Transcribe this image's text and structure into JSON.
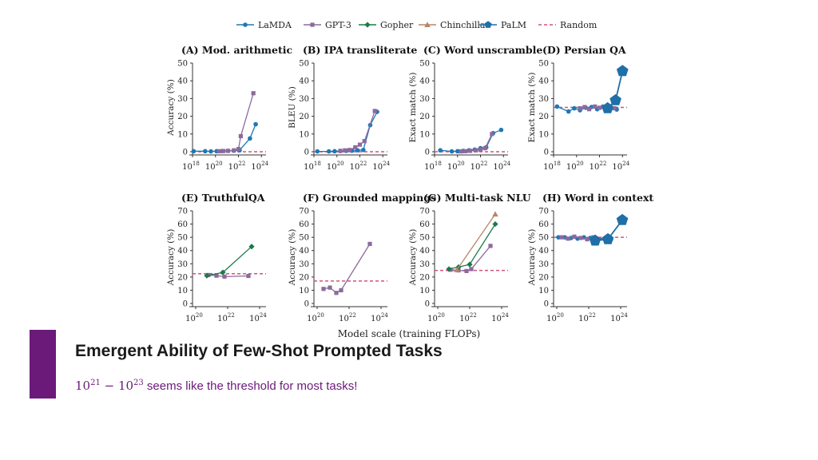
{
  "legend": [
    {
      "name": "LaMDA",
      "color": "#1f78b4",
      "marker": "circle"
    },
    {
      "name": "GPT-3",
      "color": "#8c6a9e",
      "marker": "square"
    },
    {
      "name": "Gopher",
      "color": "#1b7a4a",
      "marker": "diamond"
    },
    {
      "name": "Chinchilla",
      "color": "#b5876a",
      "marker": "triangle"
    },
    {
      "name": "PaLM",
      "color": "#1f6fa8",
      "marker": "pentagon"
    },
    {
      "name": "Random",
      "color": "#d2527f",
      "marker": "dashed"
    }
  ],
  "x_axis_title": "Model scale (training FLOPs)",
  "slide": {
    "title": "Emergent Ability of Few-Shot Prompted Tasks",
    "subtitle_base1": "10",
    "subtitle_exp1": "21",
    "subtitle_minus": " − ",
    "subtitle_base2": "10",
    "subtitle_exp2": "23",
    "subtitle_text": " seems like the threshold for most tasks!"
  },
  "chart_data": [
    {
      "type": "line",
      "title": "(A) Mod. arithmetic",
      "ylabel": "Accuracy (%)",
      "xlim": [
        18,
        24.4
      ],
      "xticks": [
        18,
        20,
        22,
        24
      ],
      "ylim": [
        0,
        50
      ],
      "yticks": [
        0,
        10,
        20,
        30,
        40,
        50
      ],
      "random": 0,
      "series": [
        {
          "name": "LaMDA",
          "x": [
            18.1,
            19.1,
            19.6,
            20.1,
            20.6,
            21.1,
            21.6,
            22.1,
            23.0,
            23.5
          ],
          "y": [
            0.3,
            0.3,
            0.2,
            0.3,
            0.4,
            0.5,
            0.6,
            0.8,
            7.5,
            15.5
          ]
        },
        {
          "name": "GPT-3",
          "x": [
            20.3,
            20.7,
            21.1,
            21.6,
            22.0,
            22.2,
            23.3
          ],
          "y": [
            0.3,
            0.4,
            0.5,
            0.8,
            1.5,
            8.8,
            33
          ]
        }
      ]
    },
    {
      "type": "line",
      "title": "(B) IPA transliterate",
      "ylabel": "BLEU (%)",
      "xlim": [
        18,
        24.4
      ],
      "xticks": [
        18,
        20,
        22,
        24
      ],
      "ylim": [
        0,
        50
      ],
      "yticks": [
        0,
        10,
        20,
        30,
        40,
        50
      ],
      "random": 0,
      "series": [
        {
          "name": "LaMDA",
          "x": [
            18.3,
            19.3,
            19.8,
            20.3,
            20.8,
            21.3,
            21.8,
            22.3,
            22.9,
            23.5
          ],
          "y": [
            0.2,
            0.2,
            0.3,
            0.4,
            0.5,
            0.6,
            0.8,
            1.0,
            15,
            22.5
          ]
        },
        {
          "name": "GPT-3",
          "x": [
            20.3,
            20.7,
            21.1,
            21.6,
            22.0,
            22.4,
            23.3
          ],
          "y": [
            0.5,
            0.8,
            1.0,
            2.5,
            4.0,
            6.0,
            23
          ]
        }
      ]
    },
    {
      "type": "line",
      "title": "(C) Word unscramble",
      "ylabel": "Exact match (%)",
      "xlim": [
        18,
        24.4
      ],
      "xticks": [
        18,
        20,
        22,
        24
      ],
      "ylim": [
        0,
        50
      ],
      "yticks": [
        0,
        10,
        20,
        30,
        40,
        50
      ],
      "random": 0,
      "series": [
        {
          "name": "LaMDA",
          "x": [
            18.5,
            19.5,
            20.0,
            20.5,
            21.0,
            21.5,
            22.0,
            22.5,
            23.1,
            23.8
          ],
          "y": [
            0.8,
            0.2,
            0.3,
            0.5,
            0.8,
            1.2,
            2.0,
            2.5,
            10.5,
            12.3
          ]
        },
        {
          "name": "GPT-3",
          "x": [
            20.3,
            20.7,
            21.1,
            21.6,
            22.0,
            22.4,
            23.0
          ],
          "y": [
            0.2,
            0.3,
            0.5,
            0.8,
            1.2,
            2.0,
            10
          ]
        }
      ]
    },
    {
      "type": "line",
      "title": "(D) Persian QA",
      "ylabel": "Exact match (%)",
      "xlim": [
        18,
        24.4
      ],
      "xticks": [
        18,
        20,
        22,
        24
      ],
      "ylim": [
        0,
        50
      ],
      "yticks": [
        0,
        10,
        20,
        30,
        40,
        50
      ],
      "random": 25,
      "series": [
        {
          "name": "LaMDA",
          "x": [
            18.3,
            19.3,
            19.8,
            20.3,
            20.8,
            21.3,
            21.8,
            22.3,
            22.8,
            23.5
          ],
          "y": [
            25.5,
            22.7,
            24.5,
            23.4,
            24.8,
            25.2,
            24.0,
            25.5,
            24.2,
            23.8
          ]
        },
        {
          "name": "GPT-3",
          "x": [
            20.3,
            20.7,
            21.1,
            21.6,
            22.0,
            22.4,
            23.3
          ],
          "y": [
            24.5,
            25.2,
            24.0,
            25.5,
            24.8,
            25.0,
            24.5
          ]
        },
        {
          "name": "PaLM",
          "x": [
            22.7,
            23.4,
            24.0
          ],
          "y": [
            24.5,
            29.0,
            45.5
          ]
        }
      ]
    },
    {
      "type": "line",
      "title": "(E) TruthfulQA",
      "ylabel": "Accuracy (%)",
      "xlim": [
        19.8,
        24.4
      ],
      "xticks": [
        20,
        22,
        24
      ],
      "ylim": [
        0,
        70
      ],
      "yticks": [
        0,
        10,
        20,
        30,
        40,
        50,
        60,
        70
      ],
      "random": 22.5,
      "series": [
        {
          "name": "GPT-3",
          "x": [
            20.8,
            21.3,
            21.8,
            23.3
          ],
          "y": [
            21.5,
            21.0,
            20.3,
            20.8
          ]
        },
        {
          "name": "Gopher",
          "x": [
            20.7,
            21.7,
            23.5
          ],
          "y": [
            21.0,
            23.5,
            43
          ]
        }
      ]
    },
    {
      "type": "line",
      "title": "(F) Grounded mappings",
      "ylabel": "Accuracy (%)",
      "xlim": [
        19.8,
        24.4
      ],
      "xticks": [
        20,
        22,
        24
      ],
      "ylim": [
        0,
        70
      ],
      "yticks": [
        0,
        10,
        20,
        30,
        40,
        50,
        60,
        70
      ],
      "random": 17,
      "series": [
        {
          "name": "GPT-3",
          "x": [
            20.4,
            20.8,
            21.2,
            21.5,
            23.3
          ],
          "y": [
            11,
            12,
            8,
            10,
            45
          ]
        }
      ]
    },
    {
      "type": "line",
      "title": "(G) Multi-task NLU",
      "ylabel": "Accuracy (%)",
      "xlim": [
        19.8,
        24.4
      ],
      "xticks": [
        20,
        22,
        24
      ],
      "ylim": [
        0,
        70
      ],
      "yticks": [
        0,
        10,
        20,
        30,
        40,
        50,
        60,
        70
      ],
      "random": 25,
      "series": [
        {
          "name": "GPT-3",
          "x": [
            20.8,
            21.3,
            21.8,
            22.1,
            23.3
          ],
          "y": [
            25.5,
            25.0,
            24.5,
            26.0,
            43.5
          ]
        },
        {
          "name": "Gopher",
          "x": [
            20.7,
            21.3,
            22.0,
            23.6
          ],
          "y": [
            26,
            27.5,
            29.5,
            60
          ]
        },
        {
          "name": "Chinchilla",
          "x": [
            21.2,
            23.6
          ],
          "y": [
            25.5,
            67.5
          ]
        }
      ]
    },
    {
      "type": "line",
      "title": "(H) Word in context",
      "ylabel": "Accuracy (%)",
      "xlim": [
        19.8,
        24.4
      ],
      "xticks": [
        20,
        22,
        24
      ],
      "ylim": [
        0,
        70
      ],
      "yticks": [
        0,
        10,
        20,
        30,
        40,
        50,
        60,
        70
      ],
      "random": 50,
      "series": [
        {
          "name": "LaMDA",
          "x": [
            20.1,
            20.5,
            20.9,
            21.3,
            21.7,
            22.1,
            22.5,
            23.0,
            23.4
          ],
          "y": [
            50,
            50,
            49.5,
            49,
            50,
            49.5,
            49,
            48.5,
            48.5
          ]
        },
        {
          "name": "GPT-3",
          "x": [
            20.3,
            20.7,
            21.1,
            21.5,
            21.9,
            22.3,
            23.1
          ],
          "y": [
            50,
            49,
            50.5,
            49.5,
            48.5,
            50,
            49
          ]
        },
        {
          "name": "PaLM",
          "x": [
            22.4,
            23.2,
            24.1
          ],
          "y": [
            47.5,
            48.5,
            63
          ]
        }
      ]
    }
  ]
}
